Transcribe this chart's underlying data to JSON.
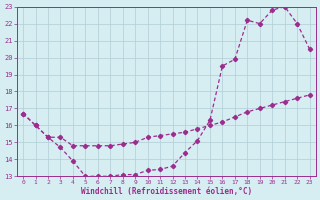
{
  "curve1_x": [
    0,
    1,
    2,
    3,
    4,
    5,
    6,
    7,
    8,
    9,
    10,
    11,
    12,
    13,
    14,
    15,
    16,
    17,
    18,
    19,
    20,
    21,
    22,
    23
  ],
  "curve1_y": [
    16.7,
    16.0,
    15.3,
    15.3,
    14.8,
    14.8,
    14.8,
    14.8,
    14.9,
    15.0,
    15.3,
    15.4,
    15.5,
    15.6,
    15.8,
    16.0,
    16.2,
    16.5,
    16.8,
    17.0,
    17.2,
    17.4,
    17.6,
    17.8
  ],
  "curve2_x": [
    0,
    1,
    2,
    3,
    4,
    5,
    6,
    7,
    8,
    9,
    10,
    11,
    12,
    13,
    14,
    15,
    16,
    17,
    18,
    19,
    20,
    21,
    22,
    23
  ],
  "curve2_y": [
    16.7,
    16.0,
    15.3,
    14.7,
    13.9,
    13.0,
    13.0,
    13.0,
    13.1,
    13.1,
    13.35,
    13.4,
    13.6,
    14.4,
    15.1,
    16.3,
    19.5,
    19.9,
    22.2,
    22.0,
    22.8,
    23.0,
    22.0,
    20.5
  ],
  "line_color": "#9b2d8e",
  "bg_color": "#d6eef2",
  "grid_color": "#b0cdd4",
  "xlabel": "Windchill (Refroidissement éolien,°C)",
  "xlim": [
    -0.5,
    23.5
  ],
  "ylim": [
    13,
    23
  ],
  "yticks": [
    13,
    14,
    15,
    16,
    17,
    18,
    19,
    20,
    21,
    22,
    23
  ],
  "xticks": [
    0,
    1,
    2,
    3,
    4,
    5,
    6,
    7,
    8,
    9,
    10,
    11,
    12,
    13,
    14,
    15,
    16,
    17,
    18,
    19,
    20,
    21,
    22,
    23
  ]
}
